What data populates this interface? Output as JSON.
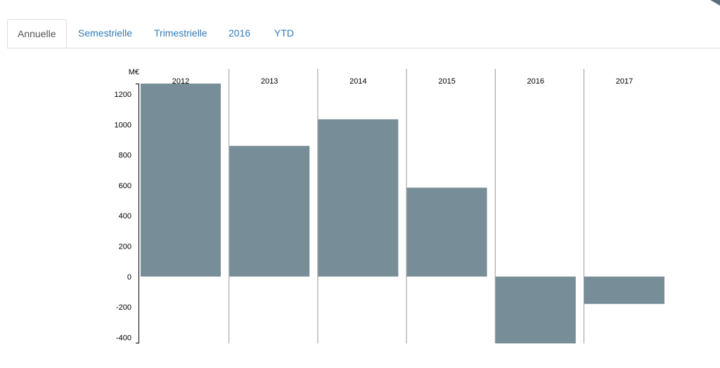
{
  "tabs": [
    {
      "label": "Annuelle",
      "active": true
    },
    {
      "label": "Semestrielle",
      "active": false
    },
    {
      "label": "Trimestrielle",
      "active": false
    },
    {
      "label": "2016",
      "active": false
    },
    {
      "label": "YTD",
      "active": false
    }
  ],
  "chart_data": {
    "type": "bar",
    "categories": [
      "2012",
      "2013",
      "2014",
      "2015",
      "2016",
      "2017"
    ],
    "values": [
      1270,
      860,
      1035,
      585,
      -440,
      -180
    ],
    "ylabel": "M€",
    "ylim": [
      -440,
      1270
    ],
    "yticks": [
      -400,
      -200,
      0,
      200,
      400,
      600,
      800,
      1000,
      1200
    ],
    "bar_color": "#778d98",
    "legend": "none",
    "grid": false
  },
  "colors": {
    "tab_link": "#337ab7",
    "tab_active_text": "#555555",
    "border": "#dddddd",
    "corner_accent": "#5b6f7f"
  }
}
